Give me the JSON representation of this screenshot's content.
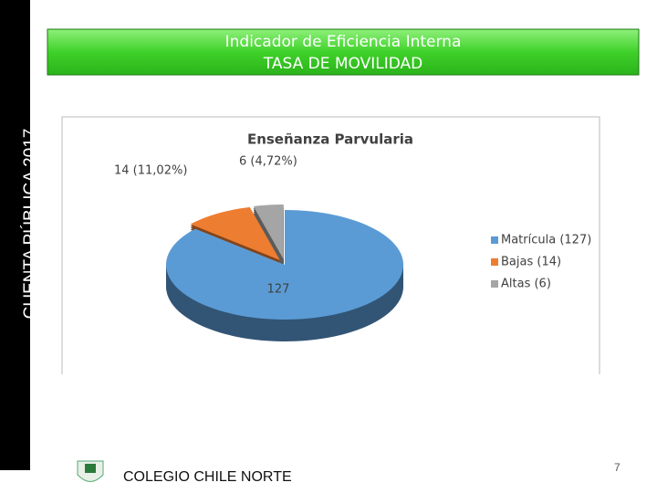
{
  "sidebar": "CUENTA PÚBLICA 2017",
  "header": {
    "line1": "Indicador de Eficiencia Interna",
    "line2": "TASA DE MOVILIDAD"
  },
  "chart_data": {
    "type": "pie",
    "title": "Enseñanza Parvularia",
    "categories": [
      "Matrícula (127)",
      "Bajas (14)",
      "Altas (6)"
    ],
    "values": [
      127,
      14,
      6
    ],
    "value_labels": [
      "127",
      "14 (11,02%)",
      "6 (4,72%)"
    ],
    "colors": [
      "#5b9bd5",
      "#ed7d31",
      "#a5a5a5"
    ],
    "legend": "right"
  },
  "footer": {
    "school": "COLEGIO CHILE NORTE",
    "page": "7"
  }
}
